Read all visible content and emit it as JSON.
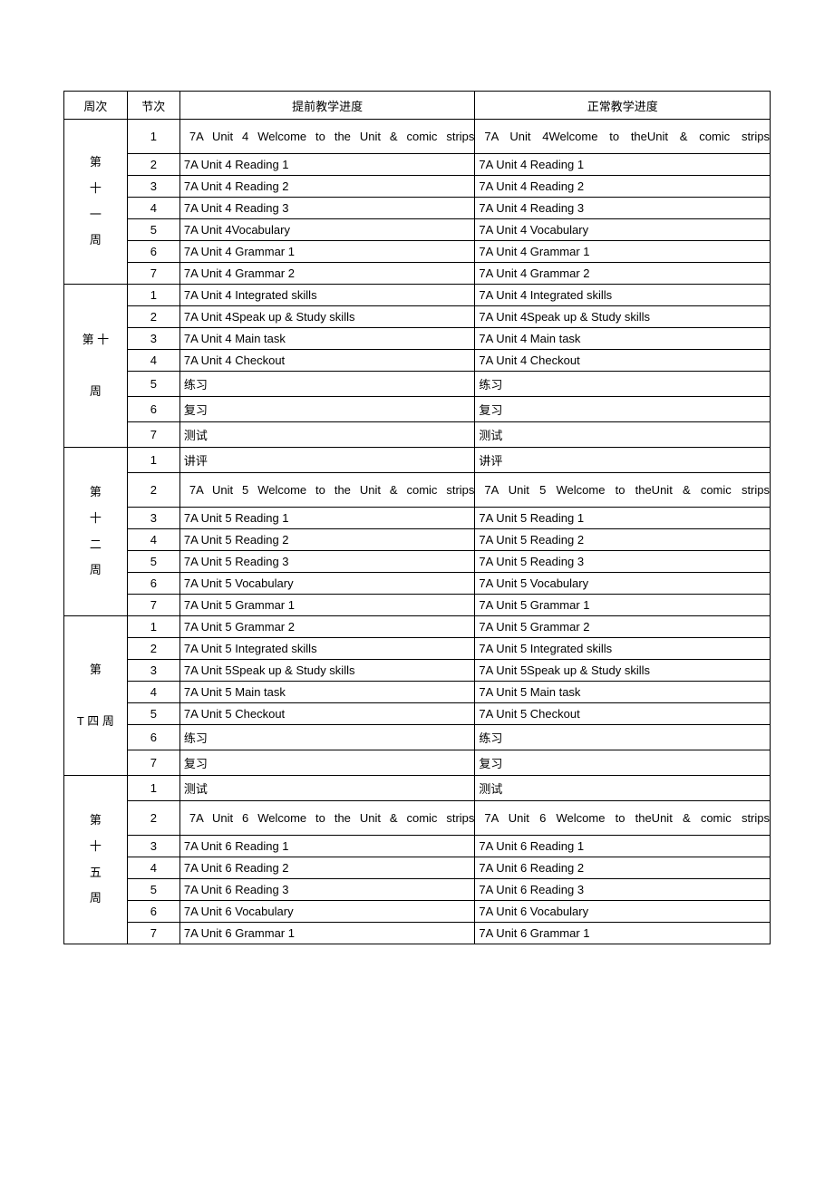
{
  "headers": {
    "week": "周次",
    "session": "节次",
    "advance": "提前教学进度",
    "normal": "正常教学进度"
  },
  "weeks": [
    {
      "label_lines": [
        "第",
        "十",
        "一",
        "周"
      ],
      "rows": [
        {
          "s": "1",
          "a": "7A Unit 4 Welcome to the     Unit  & comic strips",
          "n": "7A Unit 4Welcome to        theUnit  & comic strips",
          "cls": "tall",
          "indent": true
        },
        {
          "s": "2",
          "a": "7A Unit 4 Reading 1",
          "n": "7A Unit 4 Reading 1",
          "cls": "norm"
        },
        {
          "s": "3",
          "a": "7A Unit 4 Reading 2",
          "n": "7A Unit 4 Reading 2",
          "cls": "norm"
        },
        {
          "s": "4",
          "a": "7A Unit 4 Reading 3",
          "n": "7A Unit 4 Reading 3",
          "cls": "norm"
        },
        {
          "s": "5",
          "a": "7A Unit 4Vocabulary",
          "n": "7A Unit 4 Vocabulary",
          "cls": "norm"
        },
        {
          "s": "6",
          "a": "7A Unit 4 Grammar 1",
          "n": "7A Unit 4 Grammar 1",
          "cls": "norm"
        },
        {
          "s": "7",
          "a": "7A Unit 4 Grammar 2",
          "n": "7A Unit 4 Grammar 2",
          "cls": "norm"
        }
      ]
    },
    {
      "label_lines": [
        "第 十",
        "",
        "周"
      ],
      "rows": [
        {
          "s": "1",
          "a": "7A Unit 4 Integrated skills",
          "n": "7A Unit 4 Integrated skills",
          "cls": "norm"
        },
        {
          "s": "2",
          "a": "7A Unit 4Speak up & Study skills",
          "n": "7A Unit 4Speak up & Study skills",
          "cls": "norm"
        },
        {
          "s": "3",
          "a": "7A Unit 4 Main task",
          "n": "7A Unit 4 Main task",
          "cls": "norm"
        },
        {
          "s": "4",
          "a": "7A Unit 4 Checkout",
          "n": "7A Unit 4 Checkout",
          "cls": "norm"
        },
        {
          "s": "5",
          "a": "练习",
          "n": "练习",
          "cls": "norm"
        },
        {
          "s": "6",
          "a": "复习",
          "n": "复习",
          "cls": "norm"
        },
        {
          "s": "7",
          "a": "测试",
          "n": "测试",
          "cls": "norm"
        }
      ]
    },
    {
      "label_lines": [
        "第",
        "十",
        "二",
        "周"
      ],
      "rows": [
        {
          "s": "1",
          "a": "讲评",
          "n": "讲评",
          "cls": "norm"
        },
        {
          "s": "2",
          "a": "7A Unit 5 Welcome to the     Unit  &     comic strips",
          "n": "7A Unit 5 Welcome to        theUnit  &     comic strips",
          "cls": "tall",
          "indent": true
        },
        {
          "s": "3",
          "a": "7A Unit 5 Reading 1",
          "n": "7A Unit 5 Reading 1",
          "cls": "norm"
        },
        {
          "s": "4",
          "a": "7A Unit 5 Reading 2",
          "n": "7A Unit 5 Reading 2",
          "cls": "norm"
        },
        {
          "s": "5",
          "a": "7A Unit 5 Reading 3",
          "n": "7A Unit 5 Reading 3",
          "cls": "norm"
        },
        {
          "s": "6",
          "a": "7A Unit 5 Vocabulary",
          "n": "7A Unit 5 Vocabulary",
          "cls": "short"
        },
        {
          "s": "7",
          "a": "7A Unit 5 Grammar 1",
          "n": "7A Unit 5 Grammar 1",
          "cls": "short"
        }
      ]
    },
    {
      "label_lines": [
        "第",
        "",
        "T  四 周"
      ],
      "rows": [
        {
          "s": "1",
          "a": "7A Unit 5 Grammar 2",
          "n": "7A Unit 5 Grammar 2",
          "cls": "norm"
        },
        {
          "s": "2",
          "a": "7A Unit 5 Integrated skills",
          "n": "7A Unit 5 Integrated skills",
          "cls": "norm"
        },
        {
          "s": "3",
          "a": "7A Unit 5Speak up & Study skills",
          "n": "7A Unit 5Speak up & Study skills",
          "cls": "norm"
        },
        {
          "s": "4",
          "a": "7A Unit 5 Main task",
          "n": "7A Unit 5 Main task",
          "cls": "norm"
        },
        {
          "s": "5",
          "a": "7A Unit 5 Checkout",
          "n": "7A Unit 5 Checkout",
          "cls": "norm"
        },
        {
          "s": "6",
          "a": "练习",
          "n": "练习",
          "cls": "norm"
        },
        {
          "s": "7",
          "a": "复习",
          "n": "复习",
          "cls": "norm"
        }
      ]
    },
    {
      "label_lines": [
        "第",
        "十",
        "五",
        "周"
      ],
      "rows": [
        {
          "s": "1",
          "a": "测试",
          "n": "测试",
          "cls": "norm"
        },
        {
          "s": "2",
          "a": "7A Unit 6 Welcome to the     Unit  & comic strips",
          "n": "7A Unit 6 Welcome to        theUnit  & comic strips",
          "cls": "tall",
          "indent": true
        },
        {
          "s": "3",
          "a": "7A Unit 6 Reading 1",
          "n": "7A Unit 6 Reading 1",
          "cls": "norm"
        },
        {
          "s": "4",
          "a": "7A Unit 6 Reading 2",
          "n": "7A Unit 6 Reading 2",
          "cls": "norm"
        },
        {
          "s": "5",
          "a": "7A Unit 6 Reading 3",
          "n": "7A Unit 6 Reading 3",
          "cls": "norm"
        },
        {
          "s": "6",
          "a": "7A Unit 6 Vocabulary",
          "n": "7A Unit 6 Vocabulary",
          "cls": "short"
        },
        {
          "s": "7",
          "a": "7A Unit 6 Grammar 1",
          "n": "7A Unit 6 Grammar 1",
          "cls": "short"
        }
      ]
    }
  ]
}
